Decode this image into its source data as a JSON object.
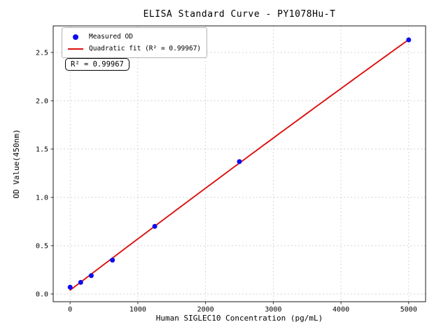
{
  "chart_data": {
    "type": "scatter",
    "title": "ELISA Standard Curve - PY1078Hu-T",
    "xlabel": "Human SIGLEC10 Concentration (pg/mL)",
    "ylabel": "OD Value(450nm)",
    "series": [
      {
        "name": "Measured OD",
        "type": "scatter",
        "color": "#0d0dee",
        "x": [
          0,
          156.25,
          312.5,
          625,
          1250,
          2500,
          5000
        ],
        "y": [
          0.07,
          0.12,
          0.19,
          0.35,
          0.7,
          1.37,
          2.63
        ]
      },
      {
        "name": "Quadratic fit (R² = 0.99967)",
        "type": "quadratic-fit",
        "color": "#dd0f0f",
        "r_squared": 0.99967,
        "x_range": [
          0,
          5000
        ]
      }
    ],
    "xlim": [
      -250,
      5250
    ],
    "ylim": [
      -0.08,
      2.775
    ],
    "xticks": [
      0,
      1000,
      2000,
      3000,
      4000,
      5000
    ],
    "xtick_labels": [
      "0",
      "1000",
      "2000",
      "3000",
      "4000",
      "5000"
    ],
    "yticks": [
      0,
      0.5,
      1,
      1.5,
      2,
      2.5
    ],
    "ytick_labels": [
      "0.0",
      "0.5",
      "1.0",
      "1.5",
      "2.0",
      "2.5"
    ],
    "grid": true,
    "legend_position": "upper left",
    "annotation": "R² = 0.99967"
  }
}
